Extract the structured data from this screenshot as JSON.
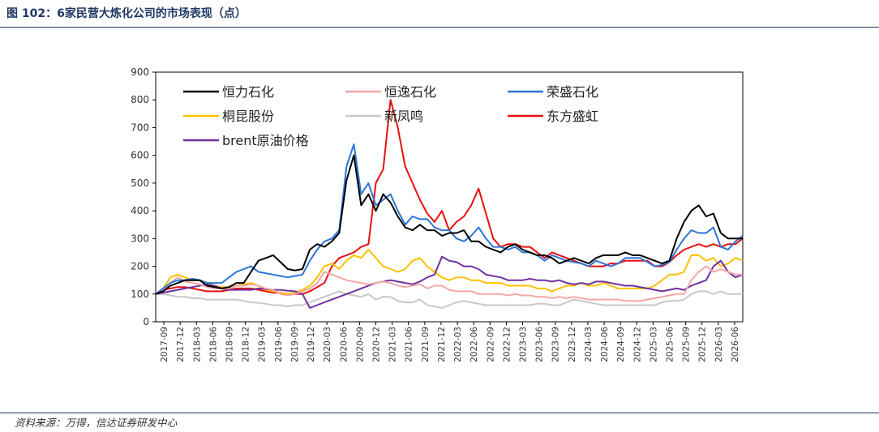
{
  "figure": {
    "title": "图 102：6家民营大炼化公司的市场表现（点）",
    "source": "资料来源：万得，信达证券研发中心"
  },
  "chart_data": {
    "type": "line",
    "title": "",
    "xlabel": "",
    "ylabel": "",
    "ylim": [
      0,
      900
    ],
    "yticks": [
      0,
      100,
      200,
      300,
      400,
      500,
      600,
      700,
      800,
      900
    ],
    "xticks": [
      "2017-09",
      "2017-12",
      "2018-03",
      "2018-06",
      "2018-09",
      "2018-12",
      "2019-03",
      "2019-06",
      "2019-09",
      "2019-12",
      "2020-03",
      "2020-06",
      "2020-09",
      "2020-12",
      "2021-03",
      "2021-06",
      "2021-09",
      "2021-12",
      "2022-03",
      "2022-06",
      "2022-09",
      "2022-12",
      "2023-03",
      "2023-06",
      "2023-09",
      "2023-12",
      "2024-03",
      "2024-06",
      "2024-09",
      "2024-12",
      "2025-03",
      "2025-06",
      "2025-09",
      "2025-12",
      "2026-03",
      "2026-06"
    ],
    "grid": false,
    "legend_position": "top-left",
    "series": [
      {
        "name": "恒力石化",
        "color": "#000000",
        "values": [
          100,
          110,
          130,
          140,
          150,
          150,
          150,
          130,
          125,
          120,
          125,
          140,
          140,
          180,
          220,
          230,
          240,
          215,
          190,
          185,
          190,
          260,
          280,
          270,
          290,
          320,
          510,
          600,
          420,
          460,
          400,
          460,
          430,
          380,
          340,
          330,
          350,
          330,
          330,
          310,
          320,
          320,
          330,
          290,
          290,
          270,
          260,
          250,
          270,
          280,
          260,
          250,
          240,
          240,
          230,
          210,
          220,
          230,
          220,
          210,
          230,
          240,
          240,
          240,
          250,
          240,
          240,
          230,
          220,
          210,
          220,
          300,
          360,
          400,
          420,
          380,
          390,
          320,
          300,
          300,
          300
        ]
      },
      {
        "name": "恒逸石化",
        "color": "#f4a6a6",
        "values": [
          100,
          115,
          140,
          160,
          145,
          140,
          135,
          125,
          120,
          120,
          120,
          130,
          130,
          135,
          130,
          120,
          115,
          100,
          95,
          100,
          110,
          120,
          140,
          180,
          170,
          160,
          150,
          145,
          140,
          135,
          140,
          145,
          140,
          130,
          125,
          130,
          135,
          120,
          130,
          130,
          115,
          110,
          110,
          110,
          100,
          100,
          100,
          100,
          95,
          100,
          95,
          95,
          90,
          90,
          85,
          90,
          85,
          90,
          85,
          80,
          80,
          80,
          80,
          80,
          75,
          75,
          75,
          80,
          85,
          90,
          95,
          100,
          100,
          150,
          180,
          200,
          180,
          190,
          180,
          170,
          170
        ]
      },
      {
        "name": "荣盛石化",
        "color": "#2e75d6",
        "values": [
          100,
          120,
          140,
          150,
          150,
          155,
          150,
          140,
          140,
          140,
          160,
          180,
          190,
          200,
          180,
          175,
          170,
          165,
          160,
          165,
          170,
          220,
          260,
          290,
          300,
          330,
          560,
          640,
          460,
          500,
          420,
          440,
          460,
          400,
          350,
          380,
          370,
          370,
          340,
          330,
          330,
          300,
          290,
          310,
          340,
          300,
          270,
          270,
          260,
          270,
          250,
          250,
          240,
          220,
          240,
          230,
          220,
          215,
          210,
          200,
          220,
          210,
          200,
          210,
          230,
          230,
          230,
          215,
          200,
          205,
          215,
          260,
          300,
          330,
          320,
          320,
          340,
          270,
          260,
          290,
          310
        ]
      },
      {
        "name": "桐昆股份",
        "color": "#ffc000",
        "values": [
          100,
          120,
          160,
          170,
          160,
          150,
          150,
          140,
          130,
          125,
          125,
          130,
          135,
          140,
          130,
          115,
          110,
          105,
          100,
          105,
          115,
          130,
          160,
          200,
          210,
          190,
          220,
          240,
          230,
          260,
          230,
          200,
          190,
          180,
          190,
          220,
          230,
          200,
          180,
          160,
          150,
          160,
          160,
          150,
          150,
          140,
          140,
          140,
          130,
          130,
          130,
          130,
          120,
          120,
          110,
          120,
          130,
          130,
          140,
          130,
          130,
          140,
          130,
          120,
          120,
          120,
          120,
          120,
          130,
          150,
          170,
          170,
          180,
          240,
          240,
          220,
          230,
          200,
          210,
          230,
          220
        ]
      },
      {
        "name": "新凤鸣",
        "color": "#c8c8c8",
        "values": [
          100,
          100,
          95,
          90,
          90,
          85,
          85,
          80,
          80,
          80,
          80,
          80,
          75,
          70,
          68,
          65,
          60,
          60,
          55,
          60,
          60,
          70,
          80,
          90,
          100,
          110,
          100,
          95,
          90,
          100,
          80,
          90,
          90,
          75,
          70,
          70,
          80,
          60,
          55,
          50,
          60,
          70,
          75,
          70,
          65,
          60,
          60,
          60,
          60,
          60,
          60,
          60,
          65,
          65,
          60,
          60,
          70,
          80,
          75,
          70,
          65,
          60,
          60,
          60,
          60,
          60,
          60,
          60,
          60,
          70,
          75,
          75,
          80,
          100,
          110,
          110,
          100,
          110,
          100,
          100,
          100
        ]
      },
      {
        "name": "东方盛虹",
        "color": "#e81010",
        "values": [
          100,
          115,
          120,
          125,
          125,
          120,
          115,
          110,
          110,
          110,
          115,
          120,
          120,
          120,
          115,
          110,
          105,
          105,
          100,
          100,
          100,
          110,
          125,
          140,
          200,
          230,
          240,
          250,
          270,
          280,
          500,
          550,
          800,
          700,
          560,
          500,
          440,
          390,
          360,
          400,
          330,
          360,
          380,
          420,
          480,
          390,
          300,
          270,
          280,
          280,
          270,
          270,
          250,
          230,
          250,
          240,
          230,
          220,
          210,
          200,
          200,
          200,
          210,
          210,
          220,
          220,
          220,
          220,
          200,
          200,
          215,
          240,
          260,
          270,
          280,
          270,
          280,
          270,
          280,
          280,
          300
        ]
      },
      {
        "name": "brent原油价格",
        "color": "#7030a0",
        "values": [
          100,
          105,
          110,
          115,
          120,
          125,
          130,
          135,
          130,
          120,
          115,
          115,
          115,
          115,
          120,
          118,
          115,
          115,
          112,
          110,
          100,
          50,
          60,
          70,
          80,
          90,
          100,
          110,
          120,
          130,
          140,
          145,
          150,
          145,
          140,
          135,
          145,
          160,
          170,
          235,
          220,
          215,
          200,
          200,
          190,
          170,
          165,
          160,
          150,
          150,
          150,
          155,
          150,
          150,
          145,
          150,
          140,
          135,
          140,
          135,
          145,
          145,
          140,
          135,
          130,
          130,
          125,
          120,
          115,
          110,
          115,
          120,
          115,
          130,
          140,
          150,
          200,
          220,
          180,
          160,
          170
        ]
      }
    ]
  }
}
